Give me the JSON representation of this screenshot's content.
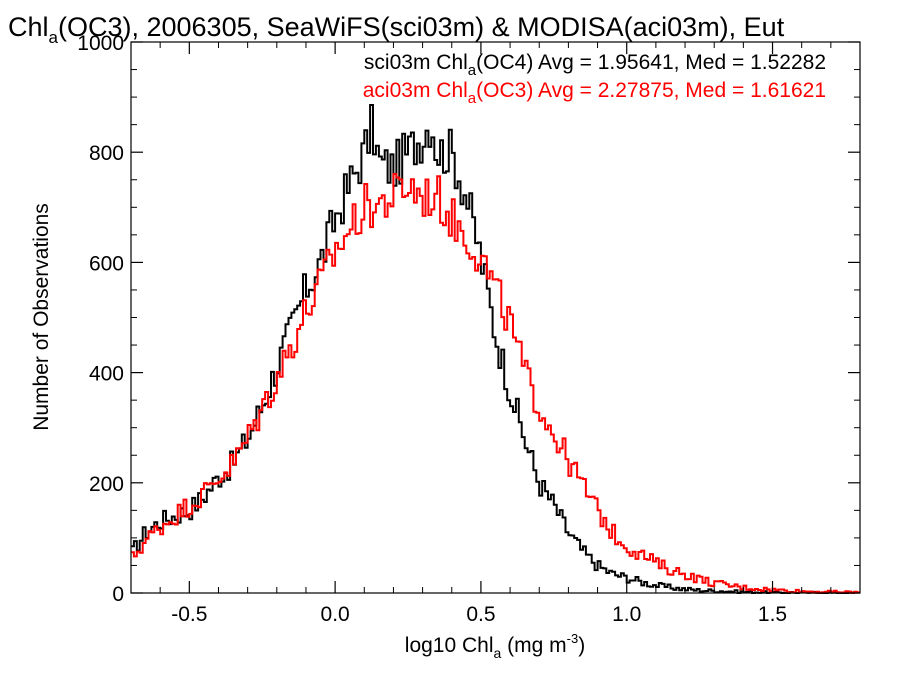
{
  "chart_data": {
    "type": "line",
    "step": true,
    "title": {
      "prefix": "Chl",
      "sub": "a",
      "rest": "(OC3), 2006305, SeaWiFS(sci03m) & MODISA(aci03m), Eut"
    },
    "xlabel": {
      "prefix": "log10 Chl",
      "sub": "a",
      "middle": " (mg m",
      "sup": "-3",
      "suffix": ")"
    },
    "ylabel": "Number of Observations",
    "xlim": [
      -0.7,
      1.8
    ],
    "ylim": [
      0,
      1000
    ],
    "x_ticks": [
      "-0.5",
      "0.0",
      "0.5",
      "1.0",
      "1.5"
    ],
    "x_tick_values": [
      -0.5,
      0.0,
      0.5,
      1.0,
      1.5
    ],
    "y_ticks": [
      "0",
      "200",
      "400",
      "600",
      "800",
      "1000"
    ],
    "y_tick_values": [
      0,
      200,
      400,
      600,
      800,
      1000
    ],
    "grid": false,
    "legend_position": "top-right",
    "series": [
      {
        "name": "sci03m",
        "color": "#000000",
        "legend": {
          "prefix": "sci03m Chl",
          "sub": "a",
          "rest": "(OC4) Avg = 1.95641, Med = 1.52282"
        },
        "x": [
          -0.7,
          -0.65,
          -0.6,
          -0.55,
          -0.5,
          -0.45,
          -0.4,
          -0.35,
          -0.3,
          -0.25,
          -0.2,
          -0.15,
          -0.1,
          -0.05,
          0.0,
          0.05,
          0.1,
          0.13,
          0.15,
          0.2,
          0.25,
          0.3,
          0.33,
          0.35,
          0.4,
          0.45,
          0.5,
          0.55,
          0.6,
          0.65,
          0.7,
          0.75,
          0.8,
          0.85,
          0.9,
          0.95,
          1.0,
          1.05,
          1.1,
          1.15,
          1.2,
          1.25,
          1.3,
          1.35,
          1.4,
          1.5,
          1.6,
          1.8
        ],
        "y": [
          70,
          110,
          130,
          140,
          150,
          175,
          210,
          235,
          280,
          340,
          410,
          480,
          550,
          600,
          680,
          740,
          800,
          850,
          780,
          770,
          800,
          830,
          860,
          800,
          800,
          720,
          610,
          470,
          370,
          280,
          200,
          160,
          110,
          75,
          50,
          35,
          28,
          20,
          14,
          10,
          7,
          5,
          4,
          3,
          2,
          1,
          1,
          0
        ]
      },
      {
        "name": "aci03m",
        "color": "#ff0000",
        "legend": {
          "prefix": "aci03m Chl",
          "sub": "a",
          "rest": "(OC3) Avg = 2.27875, Med = 1.61621"
        },
        "x": [
          -0.7,
          -0.65,
          -0.6,
          -0.55,
          -0.5,
          -0.45,
          -0.4,
          -0.35,
          -0.3,
          -0.25,
          -0.2,
          -0.15,
          -0.1,
          -0.05,
          0.0,
          0.05,
          0.1,
          0.15,
          0.2,
          0.25,
          0.3,
          0.35,
          0.4,
          0.45,
          0.5,
          0.55,
          0.6,
          0.65,
          0.7,
          0.75,
          0.8,
          0.85,
          0.9,
          0.95,
          1.0,
          1.05,
          1.1,
          1.15,
          1.2,
          1.25,
          1.3,
          1.35,
          1.4,
          1.5,
          1.6,
          1.7,
          1.8
        ],
        "y": [
          60,
          95,
          120,
          140,
          160,
          180,
          210,
          235,
          280,
          335,
          390,
          450,
          510,
          560,
          620,
          660,
          700,
          705,
          720,
          740,
          720,
          720,
          680,
          650,
          610,
          550,
          490,
          400,
          340,
          290,
          240,
          195,
          150,
          110,
          85,
          70,
          55,
          42,
          35,
          25,
          18,
          14,
          10,
          6,
          3,
          2,
          1
        ]
      }
    ]
  }
}
